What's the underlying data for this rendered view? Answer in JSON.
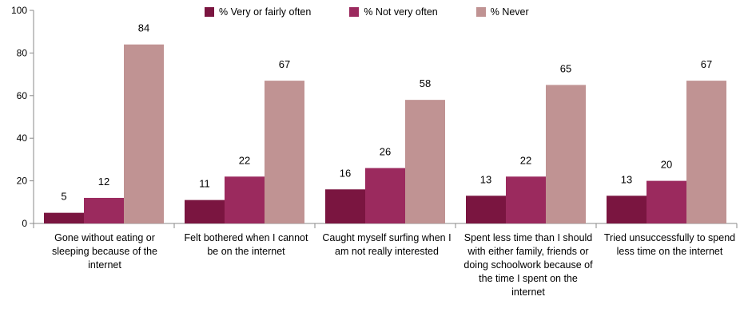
{
  "chart_data": {
    "type": "bar",
    "categories": [
      "Gone without eating or sleeping because of the internet",
      "Felt bothered when I cannot be on the internet",
      "Caught myself surfing when I am not really interested",
      "Spent less time than I should with either family, friends or doing schoolwork because of the time I spent on the internet",
      "Tried unsuccessfully to spend less time on the internet"
    ],
    "series": [
      {
        "name": "% Very or fairly often",
        "values": [
          5,
          11,
          16,
          13,
          13
        ],
        "color": "#7a1540"
      },
      {
        "name": "% Not very often",
        "values": [
          12,
          22,
          26,
          22,
          20
        ],
        "color": "#9b2a5e"
      },
      {
        "name": "% Never",
        "values": [
          84,
          67,
          58,
          65,
          67
        ],
        "color": "#c09393"
      }
    ],
    "yticks": [
      "0",
      "20",
      "40",
      "60",
      "80",
      "100"
    ],
    "ylim": [
      0,
      100
    ],
    "grid": false,
    "legend_position": "top"
  }
}
